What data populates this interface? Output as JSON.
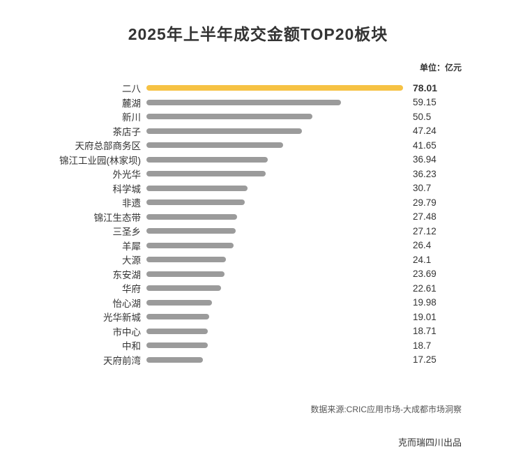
{
  "chart": {
    "title": "2025年上半年成交金额TOP20板块",
    "unit_label": "单位：亿元",
    "source": "数据来源:CRIC应用市场-大成都市场洞察",
    "publisher": "克而瑞四川出品"
  },
  "chart_data": {
    "type": "bar",
    "orientation": "horizontal",
    "title": "2025年上半年成交金额TOP20板块",
    "unit": "亿元",
    "categories": [
      "二八",
      "麓湖",
      "新川",
      "茶店子",
      "天府总部商务区",
      "锦江工业园(林家坝)",
      "外光华",
      "科学城",
      "非遗",
      "锦江生态带",
      "三圣乡",
      "羊犀",
      "大源",
      "东安湖",
      "华府",
      "怡心湖",
      "光华新城",
      "市中心",
      "中和",
      "天府前湾"
    ],
    "values": [
      78.01,
      59.15,
      50.5,
      47.24,
      41.65,
      36.94,
      36.23,
      30.7,
      29.79,
      27.48,
      27.12,
      26.4,
      24.1,
      23.69,
      22.61,
      19.98,
      19.01,
      18.71,
      18.7,
      17.25
    ],
    "highlight_index": 0,
    "highlight_color": "#f6c244",
    "bar_color": "#9b9b9b",
    "xlim": [
      0,
      78.01
    ],
    "legend": "none",
    "grid": "off"
  }
}
